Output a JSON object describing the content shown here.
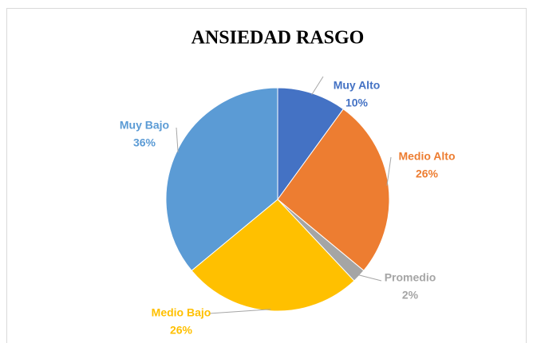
{
  "chart_data": {
    "type": "pie",
    "title": "ANSIEDAD RASGO",
    "categories": [
      "Muy Alto",
      "Medio Alto",
      "Promedio",
      "Medio Bajo",
      "Muy Bajo"
    ],
    "values": [
      10,
      26,
      2,
      26,
      36
    ],
    "value_labels": [
      "10%",
      "26%",
      "2%",
      "26%",
      "36%"
    ],
    "colors": [
      "#4472c4",
      "#ed7d31",
      "#a5a5a5",
      "#ffc000",
      "#5b9bd5"
    ]
  }
}
